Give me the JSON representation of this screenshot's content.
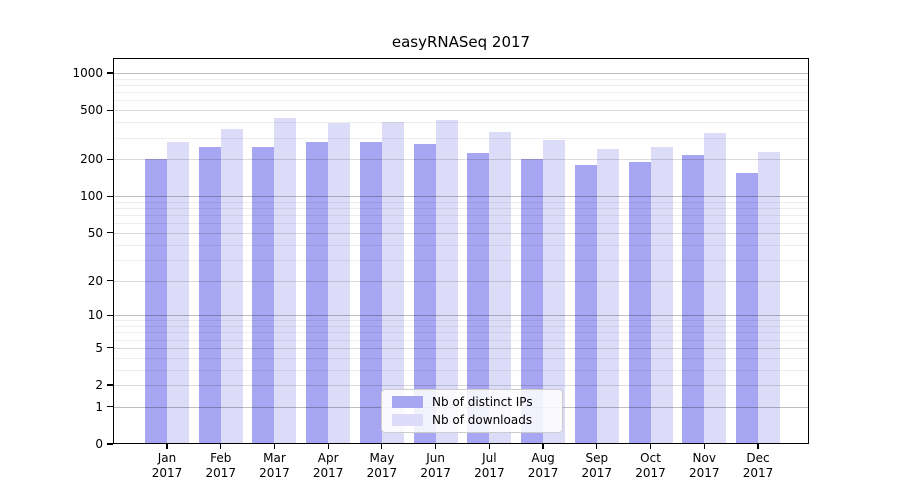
{
  "chart_data": {
    "type": "bar",
    "title": "easyRNASeq 2017",
    "y_scale": "log1p",
    "categories": [
      "Jan 2017",
      "Feb 2017",
      "Mar 2017",
      "Apr 2017",
      "May 2017",
      "Jun 2017",
      "Jul 2017",
      "Aug 2017",
      "Sep 2017",
      "Oct 2017",
      "Nov 2017",
      "Dec 2017"
    ],
    "series": [
      {
        "name": "Nb of distinct IPs",
        "color": "#a6a6f2",
        "values": [
          200,
          250,
          250,
          275,
          275,
          265,
          225,
          200,
          180,
          190,
          218,
          155
        ]
      },
      {
        "name": "Nb of downloads",
        "color": "#dcdcf9",
        "values": [
          275,
          350,
          435,
          395,
          400,
          415,
          330,
          285,
          240,
          250,
          325,
          230
        ]
      }
    ],
    "ylim": [
      0,
      1000
    ],
    "yticks": [
      0,
      1,
      2,
      5,
      10,
      20,
      50,
      100,
      200,
      500,
      1000
    ],
    "grid": true,
    "legend_position": "lower center"
  },
  "colors": {
    "major_gridline": "rgba(0,0,0,0.25)",
    "labeled_gridline": "rgba(0,0,0,0.14)",
    "minor_gridline": "rgba(0,0,0,0.07)",
    "axis": "#000000"
  }
}
